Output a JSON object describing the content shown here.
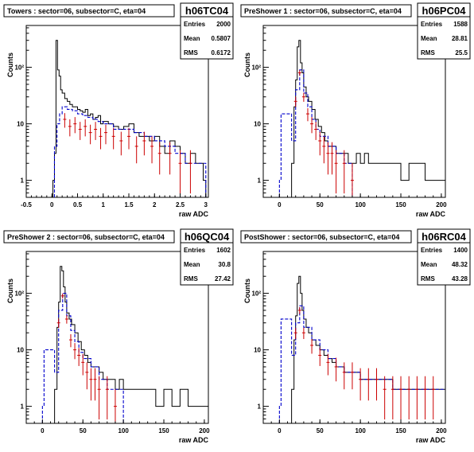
{
  "chart_data": [
    {
      "type": "histogram",
      "title": "Towers : sector=06, subsector=C, eta=04",
      "hist_name": "h06TC04",
      "stats": [
        {
          "label": "Entries",
          "value": "2000"
        },
        {
          "label": "Mean",
          "value": "0.5807"
        },
        {
          "label": "RMS",
          "value": "0.6172"
        }
      ],
      "xlabel": "raw ADC",
      "ylabel": "Counts",
      "xlim": [
        -0.5,
        3.05
      ],
      "ylim": [
        0.5,
        550
      ],
      "yscale": "log",
      "x_ticks": [
        "-0.5",
        "0",
        "0.5",
        "1",
        "1.5",
        "2",
        "2.5",
        "3"
      ],
      "x_tick_values": [
        -0.5,
        0,
        0.5,
        1,
        1.5,
        2,
        2.5,
        3
      ],
      "y_ticks": [
        "1",
        "10",
        "10²"
      ],
      "y_tick_values": [
        1,
        10,
        100
      ],
      "series": [
        {
          "style": "solid-black",
          "x": [
            0.02,
            0.05,
            0.08,
            0.11,
            0.14,
            0.17,
            0.2,
            0.25,
            0.3,
            0.35,
            0.4,
            0.45,
            0.5,
            0.55,
            0.6,
            0.65,
            0.7,
            0.75,
            0.8,
            0.85,
            0.9,
            0.95,
            1.0,
            1.1,
            1.2,
            1.3,
            1.4,
            1.5,
            1.6,
            1.7,
            1.8,
            1.9,
            2.0,
            2.1,
            2.2,
            2.3,
            2.4,
            2.5,
            2.6,
            2.7,
            2.8,
            2.9,
            2.95
          ],
          "y": [
            1,
            3,
            300,
            90,
            70,
            40,
            35,
            28,
            25,
            22,
            20,
            20,
            18,
            17,
            16,
            18,
            14,
            15,
            12,
            13,
            14,
            10,
            11,
            10,
            9,
            8,
            9,
            10,
            7,
            6,
            6,
            5,
            6,
            4,
            3,
            5,
            4,
            3,
            2,
            3,
            2,
            2,
            1
          ]
        },
        {
          "style": "dashed-blue",
          "x": [
            0.05,
            0.1,
            0.15,
            0.2,
            0.3,
            0.4,
            0.5,
            0.6,
            0.7,
            0.8,
            0.9,
            1.0,
            1.2,
            1.4,
            1.6,
            1.8,
            2.0,
            2.2,
            2.4,
            2.6,
            2.8
          ],
          "y": [
            4,
            10,
            15,
            20,
            18,
            17,
            15,
            14,
            13,
            12,
            11,
            10,
            8,
            8,
            7,
            6,
            5,
            4,
            3,
            2,
            2
          ]
        },
        {
          "style": "red-errorbars",
          "x": [
            0.25,
            0.35,
            0.45,
            0.55,
            0.65,
            0.75,
            0.85,
            0.95,
            1.05,
            1.2,
            1.35,
            1.5,
            1.65,
            1.8,
            1.95,
            2.1,
            2.3,
            2.5,
            2.7
          ],
          "y": [
            12,
            9,
            10,
            8,
            9,
            7,
            8,
            6,
            7,
            6,
            5,
            6,
            4,
            5,
            4,
            3,
            3,
            2,
            2
          ]
        }
      ]
    },
    {
      "type": "histogram",
      "title": "PreShower 1 : sector=06, subsector=C, eta=04",
      "hist_name": "h06PC04",
      "stats": [
        {
          "label": "Entries",
          "value": "1588"
        },
        {
          "label": "Mean",
          "value": "28.81"
        },
        {
          "label": "RMS",
          "value": "25.5"
        }
      ],
      "xlabel": "raw ADC",
      "ylabel": "Counts",
      "xlim": [
        -20,
        205
      ],
      "ylim": [
        0.5,
        550
      ],
      "yscale": "log",
      "x_ticks": [
        "0",
        "50",
        "100",
        "150",
        "200"
      ],
      "x_tick_values": [
        0,
        50,
        100,
        150,
        200
      ],
      "y_ticks": [
        "1",
        "10",
        "10²"
      ],
      "y_tick_values": [
        1,
        10,
        100
      ],
      "series": [
        {
          "style": "solid-black",
          "x": [
            15,
            18,
            20,
            22,
            24,
            26,
            28,
            30,
            33,
            36,
            40,
            44,
            48,
            52,
            56,
            60,
            65,
            70,
            75,
            80,
            85,
            90,
            95,
            100,
            105,
            110,
            120,
            130,
            140,
            150,
            160,
            170,
            180,
            190,
            200
          ],
          "y": [
            2,
            20,
            60,
            230,
            300,
            120,
            80,
            45,
            30,
            25,
            18,
            12,
            9,
            7,
            5,
            4,
            4,
            3,
            3,
            3,
            2,
            2,
            3,
            2,
            3,
            2,
            2,
            2,
            2,
            1,
            2,
            2,
            1,
            1,
            1
          ]
        },
        {
          "style": "dashed-blue",
          "x": [
            0,
            2,
            15,
            20,
            25,
            30,
            35,
            40,
            45,
            50,
            60,
            70,
            80
          ],
          "y": [
            1,
            15,
            5,
            40,
            90,
            35,
            20,
            12,
            8,
            6,
            4,
            3,
            2
          ]
        },
        {
          "style": "red-errorbars",
          "x": [
            20,
            25,
            30,
            35,
            40,
            45,
            50,
            55,
            60,
            65,
            70,
            80,
            90
          ],
          "y": [
            25,
            80,
            30,
            15,
            10,
            8,
            5,
            4,
            3,
            3,
            2,
            2,
            1
          ]
        }
      ]
    },
    {
      "type": "histogram",
      "title": "PreShower 2 : sector=06, subsector=C, eta=04",
      "hist_name": "h06QC04",
      "stats": [
        {
          "label": "Entries",
          "value": "1602"
        },
        {
          "label": "Mean",
          "value": "30.8"
        },
        {
          "label": "RMS",
          "value": "27.42"
        }
      ],
      "xlabel": "raw ADC",
      "ylabel": "Counts",
      "xlim": [
        -20,
        205
      ],
      "ylim": [
        0.5,
        550
      ],
      "yscale": "log",
      "x_ticks": [
        "0",
        "50",
        "100",
        "150",
        "200"
      ],
      "x_tick_values": [
        0,
        50,
        100,
        150,
        200
      ],
      "y_ticks": [
        "1",
        "10",
        "10²"
      ],
      "y_tick_values": [
        1,
        10,
        100
      ],
      "series": [
        {
          "style": "solid-black",
          "x": [
            15,
            18,
            20,
            22,
            24,
            26,
            28,
            30,
            33,
            36,
            40,
            44,
            48,
            52,
            56,
            60,
            65,
            70,
            75,
            80,
            85,
            90,
            95,
            100,
            110,
            120,
            130,
            140,
            150,
            160,
            170,
            180,
            190,
            200
          ],
          "y": [
            2,
            25,
            70,
            300,
            250,
            130,
            70,
            45,
            35,
            28,
            20,
            14,
            10,
            8,
            6,
            5,
            5,
            4,
            3,
            3,
            3,
            2,
            3,
            2,
            2,
            2,
            2,
            1,
            2,
            1,
            2,
            1,
            1,
            1
          ]
        },
        {
          "style": "dashed-blue",
          "x": [
            0,
            2,
            15,
            20,
            25,
            30,
            35,
            40,
            45,
            50,
            60,
            70,
            80,
            90
          ],
          "y": [
            1,
            10,
            4,
            50,
            100,
            40,
            22,
            14,
            9,
            7,
            5,
            3,
            2,
            2
          ]
        },
        {
          "style": "red-errorbars",
          "x": [
            20,
            25,
            30,
            35,
            40,
            45,
            50,
            55,
            60,
            65,
            70,
            80,
            90
          ],
          "y": [
            30,
            90,
            35,
            15,
            10,
            8,
            6,
            4,
            3,
            3,
            2,
            2,
            1
          ]
        }
      ]
    },
    {
      "type": "histogram",
      "title": "PostShower : sector=06, subsector=C, eta=04",
      "hist_name": "h06RC04",
      "stats": [
        {
          "label": "Entries",
          "value": "1400"
        },
        {
          "label": "Mean",
          "value": "48.32"
        },
        {
          "label": "RMS",
          "value": "43.28"
        }
      ],
      "xlabel": "raw ADC",
      "ylabel": "Counts",
      "xlim": [
        -20,
        205
      ],
      "ylim": [
        0.5,
        550
      ],
      "yscale": "log",
      "x_ticks": [
        "0",
        "50",
        "100",
        "150",
        "200"
      ],
      "x_tick_values": [
        0,
        50,
        100,
        150,
        200
      ],
      "y_ticks": [
        "1",
        "10",
        "10²"
      ],
      "y_tick_values": [
        1,
        10,
        100
      ],
      "series": [
        {
          "style": "solid-black",
          "x": [
            15,
            18,
            20,
            22,
            24,
            26,
            28,
            30,
            33,
            36,
            40,
            45,
            50,
            55,
            60,
            65,
            70,
            75,
            80,
            90,
            100,
            110,
            120,
            130,
            140,
            150,
            160,
            170,
            180,
            190,
            200
          ],
          "y": [
            2,
            15,
            40,
            150,
            200,
            100,
            50,
            35,
            25,
            20,
            15,
            12,
            10,
            8,
            7,
            6,
            5,
            5,
            4,
            4,
            3,
            3,
            3,
            3,
            2,
            2,
            2,
            2,
            2,
            2,
            2
          ]
        },
        {
          "style": "dashed-blue",
          "x": [
            0,
            2,
            15,
            20,
            25,
            30,
            40,
            50,
            60,
            70,
            80,
            100,
            120,
            140,
            160,
            180,
            200
          ],
          "y": [
            1,
            35,
            8,
            30,
            60,
            25,
            15,
            10,
            7,
            5,
            4,
            3,
            3,
            2,
            2,
            2,
            2
          ]
        },
        {
          "style": "red-errorbars",
          "x": [
            20,
            25,
            30,
            40,
            50,
            60,
            70,
            80,
            90,
            100,
            110,
            120,
            130,
            140,
            150,
            160,
            170,
            180,
            190
          ],
          "y": [
            20,
            50,
            20,
            12,
            8,
            6,
            5,
            4,
            4,
            3,
            3,
            3,
            2,
            2,
            2,
            2,
            2,
            2,
            2
          ]
        }
      ]
    }
  ]
}
